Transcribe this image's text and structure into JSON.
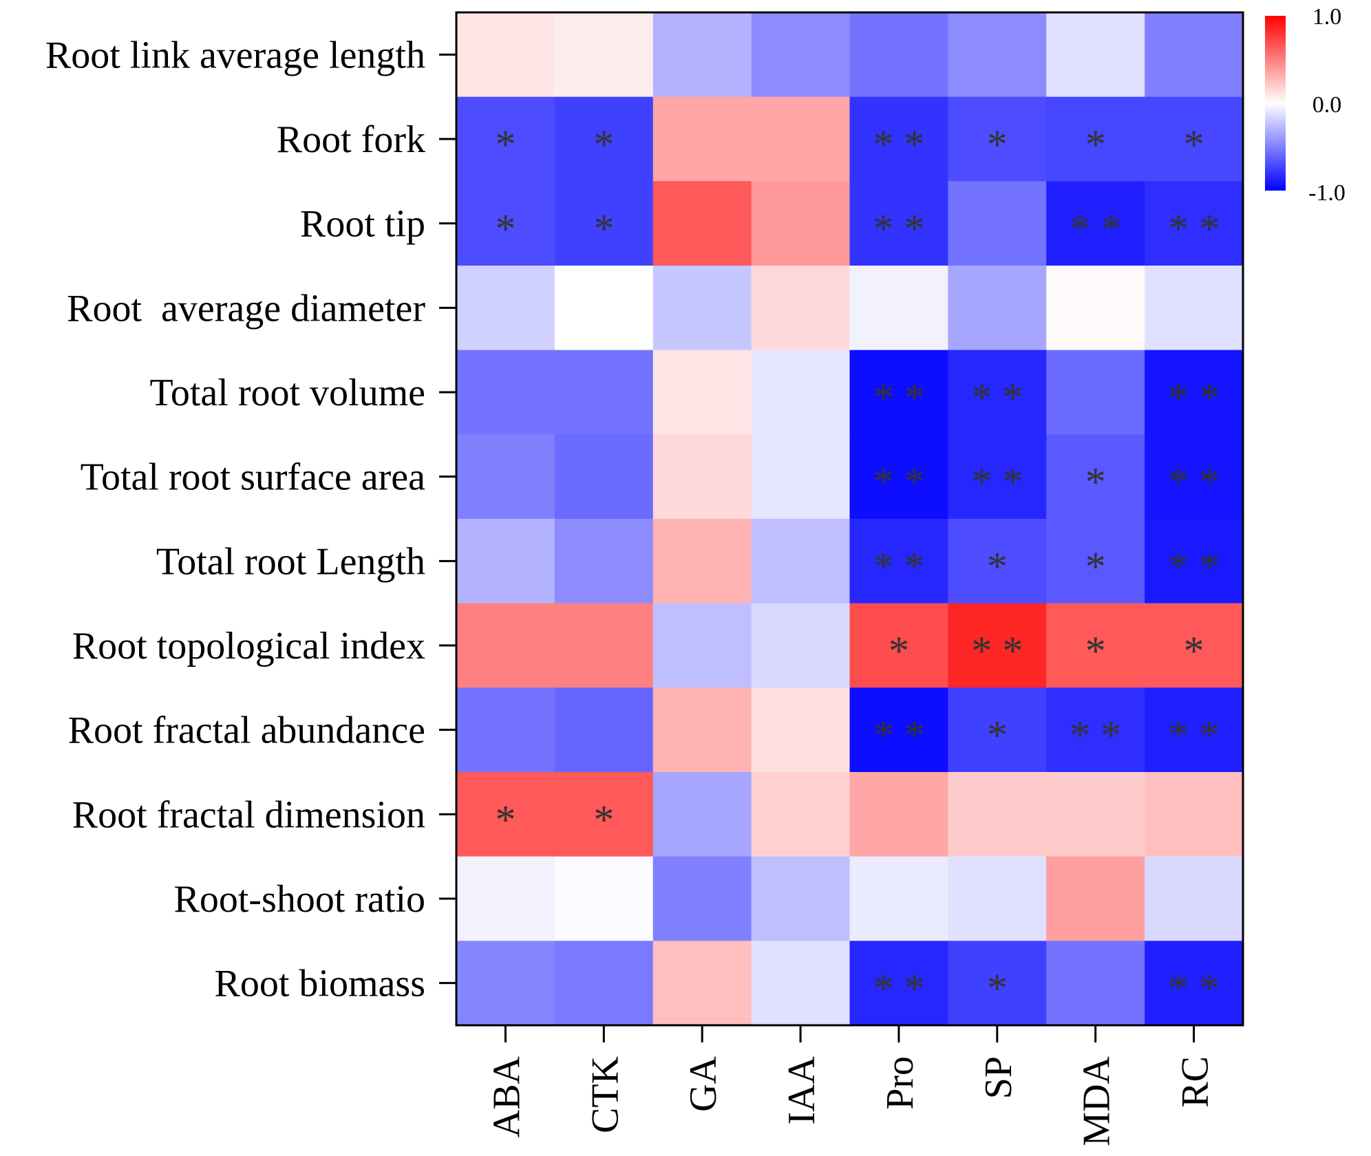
{
  "chart_data": {
    "type": "heatmap",
    "title": "",
    "xlabel": "",
    "ylabel": "",
    "columns": [
      "ABA",
      "CTK",
      "GA",
      "IAA",
      "Pro",
      "SP",
      "MDA",
      "RC"
    ],
    "rows": [
      "Root link average length",
      "Root fork",
      "Root tip",
      "Root  average diameter",
      "Total root volume",
      "Total root surface area",
      "Total root Length",
      "Root topological index",
      "Root fractal abundance",
      "Root fractal dimension",
      "Root-shoot ratio",
      "Root biomass"
    ],
    "values": [
      [
        0.1,
        0.07,
        -0.3,
        -0.45,
        -0.55,
        -0.45,
        -0.12,
        -0.5
      ],
      [
        -0.7,
        -0.75,
        0.35,
        0.35,
        -0.8,
        -0.7,
        -0.72,
        -0.72
      ],
      [
        -0.7,
        -0.75,
        0.65,
        0.4,
        -0.8,
        -0.55,
        -0.88,
        -0.82
      ],
      [
        -0.18,
        0.0,
        -0.22,
        0.15,
        -0.05,
        -0.35,
        0.02,
        -0.12
      ],
      [
        -0.55,
        -0.55,
        0.1,
        -0.1,
        -0.95,
        -0.85,
        -0.58,
        -0.92
      ],
      [
        -0.5,
        -0.58,
        0.15,
        -0.1,
        -0.95,
        -0.85,
        -0.65,
        -0.92
      ],
      [
        -0.3,
        -0.45,
        0.3,
        -0.25,
        -0.85,
        -0.7,
        -0.65,
        -0.9
      ],
      [
        0.5,
        0.5,
        -0.25,
        -0.15,
        0.7,
        0.85,
        0.65,
        0.65
      ],
      [
        -0.55,
        -0.6,
        0.3,
        0.12,
        -0.95,
        -0.75,
        -0.82,
        -0.88
      ],
      [
        0.65,
        0.65,
        -0.35,
        0.18,
        0.35,
        0.2,
        0.2,
        0.25
      ],
      [
        -0.05,
        -0.02,
        -0.5,
        -0.25,
        -0.08,
        -0.12,
        0.38,
        -0.15
      ],
      [
        -0.48,
        -0.52,
        0.25,
        -0.12,
        -0.85,
        -0.75,
        -0.55,
        -0.88
      ]
    ],
    "significance": [
      [
        "",
        "",
        "",
        "",
        "",
        "",
        "",
        ""
      ],
      [
        "*",
        "*",
        "",
        "",
        "* *",
        "*",
        "*",
        "*"
      ],
      [
        "*",
        "*",
        "",
        "",
        "* *",
        "",
        "* *",
        "* *"
      ],
      [
        "",
        "",
        "",
        "",
        "",
        "",
        "",
        ""
      ],
      [
        "",
        "",
        "",
        "",
        "* *",
        "* *",
        "",
        "* *"
      ],
      [
        "",
        "",
        "",
        "",
        "* *",
        "* *",
        "*",
        "* *"
      ],
      [
        "",
        "",
        "",
        "",
        "* *",
        "*",
        "*",
        "* *"
      ],
      [
        "",
        "",
        "",
        "",
        "*",
        "* *",
        "*",
        "*"
      ],
      [
        "",
        "",
        "",
        "",
        "* *",
        "*",
        "* *",
        "* *"
      ],
      [
        "*",
        "*",
        "",
        "",
        "",
        "",
        "",
        ""
      ],
      [
        "",
        "",
        "",
        "",
        "",
        "",
        "",
        ""
      ],
      [
        "",
        "",
        "",
        "",
        "* *",
        "*",
        "",
        "* *"
      ]
    ],
    "colorbar": {
      "min": -1.0,
      "max": 1.0,
      "ticks": [
        "1.0",
        "0.0",
        "-1.0"
      ],
      "low_color": "#0000ff",
      "mid_color": "#ffffff",
      "high_color": "#ff0000"
    }
  }
}
